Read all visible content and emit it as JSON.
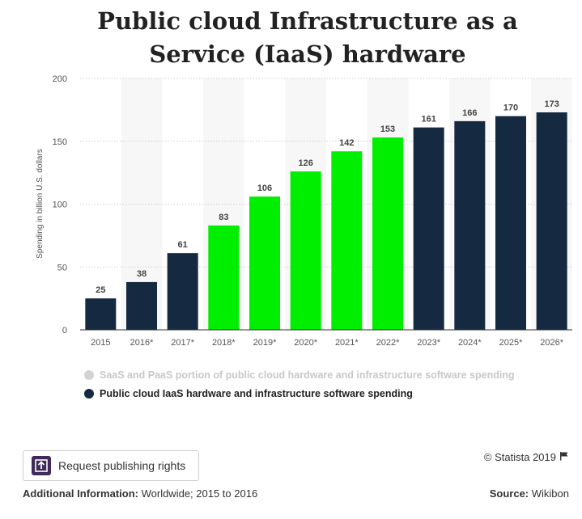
{
  "chart_data": {
    "type": "bar",
    "title": "Public cloud Infrastructure as a Service (IaaS) hardware",
    "ylabel": "Spending in billion U.S. dollars",
    "xlabel": "",
    "ylim": [
      0,
      200
    ],
    "yticks": [
      0,
      50,
      100,
      150,
      200
    ],
    "grid": true,
    "categories": [
      "2015",
      "2016*",
      "2017*",
      "2018*",
      "2019*",
      "2020*",
      "2021*",
      "2022*",
      "2023*",
      "2024*",
      "2025*",
      "2026*"
    ],
    "values": [
      25,
      38,
      61,
      83,
      106,
      126,
      142,
      153,
      161,
      166,
      170,
      173
    ],
    "bar_colors": [
      "#152940",
      "#152940",
      "#152940",
      "#00ee00",
      "#00ee00",
      "#00ee00",
      "#00ee00",
      "#00ee00",
      "#152940",
      "#152940",
      "#152940",
      "#152940"
    ],
    "legend": [
      {
        "label": "SaaS and PaaS portion of public cloud hardware and infrastructure software spending",
        "color": "#d3d3d3"
      },
      {
        "label": "Public cloud IaaS hardware and infrastructure software spending",
        "color": "#152940"
      }
    ],
    "legend_position": "bottom-left"
  },
  "footer": {
    "button_label": "Request publishing rights",
    "credit": "© Statista 2019",
    "additional_label": "Additional Information:",
    "additional_value": " Worldwide; 2015 to 2016",
    "source_label": "Source:",
    "source_value": " Wikibon"
  }
}
